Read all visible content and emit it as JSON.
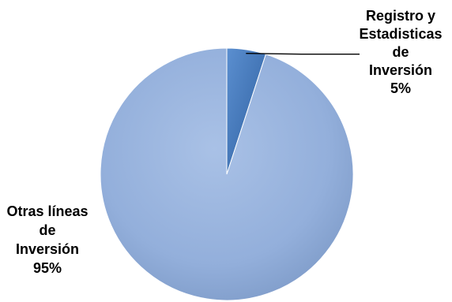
{
  "chart_data": {
    "type": "pie",
    "title": "",
    "legend": "none",
    "slices": [
      {
        "label_lines": [
          "Registro y",
          "Estadisticas",
          "de",
          "Inversión"
        ],
        "value": 5,
        "value_label": "5%",
        "color": "#3f73b8"
      },
      {
        "label_lines": [
          "Otras líneas",
          "de",
          "Inversión"
        ],
        "value": 95,
        "value_label": "95%",
        "color": "#94b0dc"
      }
    ]
  }
}
